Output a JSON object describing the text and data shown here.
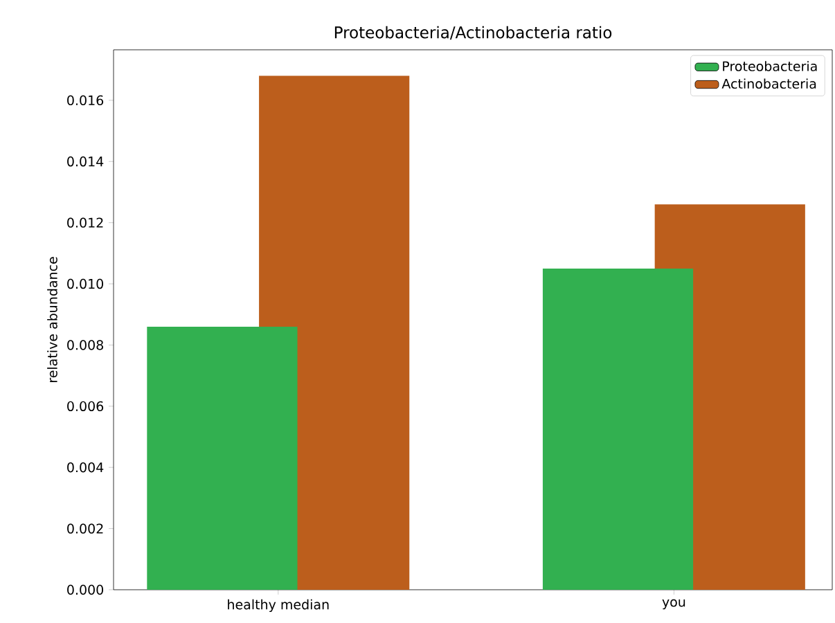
{
  "chart_data": {
    "type": "bar",
    "title": "Proteobacteria/Actinobacteria ratio",
    "ylabel": "relative abundance",
    "categories": [
      "healthy median",
      "you"
    ],
    "series": [
      {
        "name": "Proteobacteria",
        "color": "#32b050",
        "values": [
          0.0086,
          0.0105
        ]
      },
      {
        "name": "Actinobacteria",
        "color": "#bc5e1c",
        "values": [
          0.0168,
          0.0126
        ]
      }
    ],
    "ylim": [
      0,
      0.01765
    ],
    "yticks": [
      {
        "value": 0,
        "label": "0.000"
      },
      {
        "value": 0.002,
        "label": "0.002"
      },
      {
        "value": 0.004,
        "label": "0.004"
      },
      {
        "value": 0.006,
        "label": "0.006"
      },
      {
        "value": 0.008,
        "label": "0.008"
      },
      {
        "value": 0.01,
        "label": "0.010"
      },
      {
        "value": 0.012,
        "label": "0.012"
      },
      {
        "value": 0.014,
        "label": "0.014"
      },
      {
        "value": 0.016,
        "label": "0.016"
      }
    ],
    "legend": "top right",
    "grid": false
  }
}
